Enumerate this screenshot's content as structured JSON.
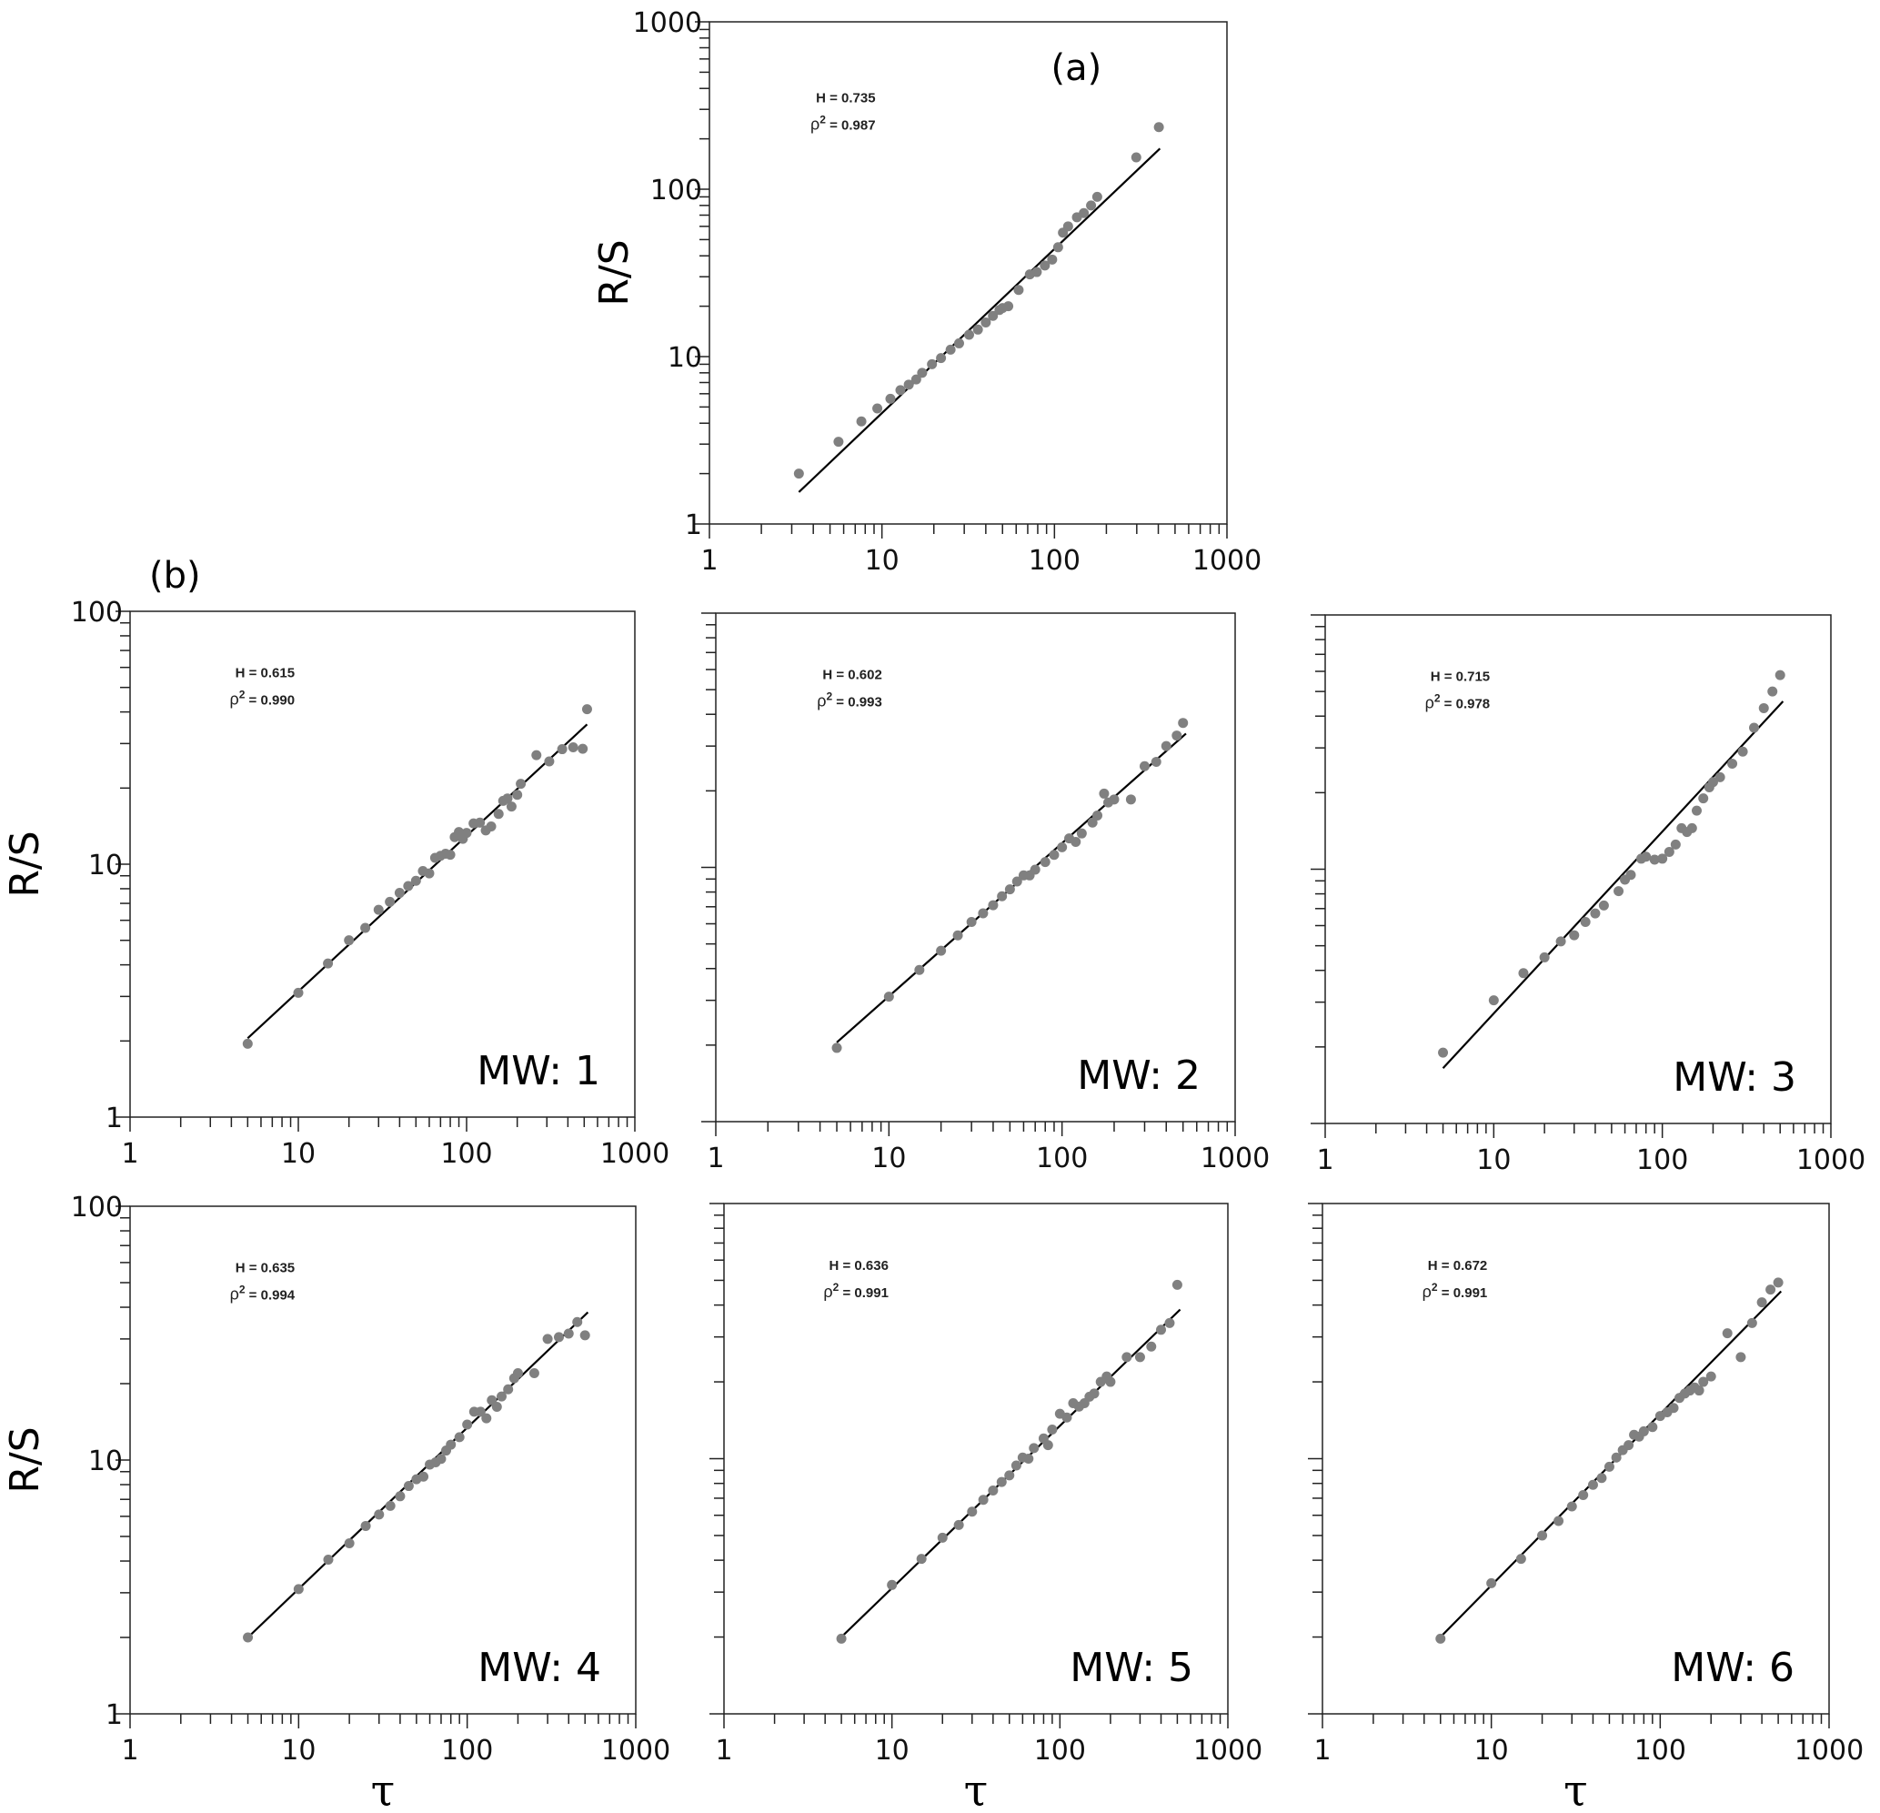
{
  "chart_data": [
    {
      "id": "a",
      "type": "scatter",
      "panel_label": "(a)",
      "xscale": "log",
      "yscale": "log",
      "xlim": [
        1,
        1000
      ],
      "ylim": [
        1,
        1000
      ],
      "xticks": [
        "1",
        "10",
        "100",
        "1000"
      ],
      "yticks": [
        "1",
        "10",
        "100",
        "1000"
      ],
      "ylabel": "R/S",
      "annotation_h": "H = 0.735",
      "annotation_r2": "0.987",
      "H": 0.735,
      "rho2": 0.987,
      "fit": [
        [
          3.3,
          1.55
        ],
        [
          409,
          175
        ]
      ],
      "points": [
        [
          3.3,
          2
        ],
        [
          5.6,
          3.1
        ],
        [
          7.6,
          4.1
        ],
        [
          9.4,
          4.9
        ],
        [
          11.2,
          5.6
        ],
        [
          12.8,
          6.3
        ],
        [
          14.3,
          6.8
        ],
        [
          15.8,
          7.3
        ],
        [
          17.1,
          8
        ],
        [
          19.5,
          9
        ],
        [
          22,
          9.8
        ],
        [
          25,
          11
        ],
        [
          28,
          12
        ],
        [
          32,
          13.5
        ],
        [
          36,
          14.5
        ],
        [
          40,
          16
        ],
        [
          44,
          17.5
        ],
        [
          48,
          19
        ],
        [
          50,
          19.5
        ],
        [
          54,
          20
        ],
        [
          62,
          25
        ],
        [
          72,
          31
        ],
        [
          79,
          32
        ],
        [
          88,
          35
        ],
        [
          97,
          38
        ],
        [
          105,
          45
        ],
        [
          112,
          55
        ],
        [
          120,
          60
        ],
        [
          135,
          68
        ],
        [
          148,
          72
        ],
        [
          163,
          80
        ],
        [
          177,
          90
        ],
        [
          298,
          155
        ],
        [
          403,
          235
        ]
      ]
    },
    {
      "id": "mw1",
      "type": "scatter",
      "panel_label": "(b)",
      "mw_label": "MW: 1",
      "xscale": "log",
      "yscale": "log",
      "xlim": [
        1,
        1000
      ],
      "ylim": [
        1,
        100
      ],
      "xticks": [
        "1",
        "10",
        "100",
        "1000"
      ],
      "yticks": [
        "1",
        "10",
        "100"
      ],
      "ylabel": "R/S",
      "annotation_h": "H = 0.615",
      "annotation_r2": "0.990",
      "H": 0.615,
      "rho2": 0.99,
      "fit": [
        [
          5,
          2.05
        ],
        [
          520,
          35.7
        ]
      ],
      "points": [
        [
          5,
          1.95
        ],
        [
          10,
          3.1
        ],
        [
          15,
          4.05
        ],
        [
          20,
          5
        ],
        [
          25,
          5.6
        ],
        [
          30,
          6.6
        ],
        [
          35,
          7.1
        ],
        [
          40,
          7.7
        ],
        [
          45,
          8.2
        ],
        [
          50,
          8.6
        ],
        [
          55,
          9.4
        ],
        [
          60,
          9.2
        ],
        [
          65,
          10.6
        ],
        [
          70,
          10.8
        ],
        [
          75,
          11
        ],
        [
          80,
          10.9
        ],
        [
          85,
          12.8
        ],
        [
          90,
          13.4
        ],
        [
          95,
          12.6
        ],
        [
          100,
          13.3
        ],
        [
          110,
          14.5
        ],
        [
          120,
          14.6
        ],
        [
          130,
          13.6
        ],
        [
          140,
          14.1
        ],
        [
          155,
          15.8
        ],
        [
          165,
          17.8
        ],
        [
          175,
          18.2
        ],
        [
          185,
          16.9
        ],
        [
          200,
          18.8
        ],
        [
          210,
          20.8
        ],
        [
          260,
          27
        ],
        [
          310,
          25.5
        ],
        [
          370,
          28.5
        ],
        [
          430,
          29
        ],
        [
          490,
          28.6
        ],
        [
          520,
          41
        ]
      ]
    },
    {
      "id": "mw2",
      "type": "scatter",
      "mw_label": "MW: 2",
      "xscale": "log",
      "yscale": "log",
      "xlim": [
        1,
        1000
      ],
      "ylim": [
        1,
        100
      ],
      "xticks": [
        "1",
        "10",
        "100",
        "1000"
      ],
      "annotation_h": "H = 0.602",
      "annotation_r2": "0.993",
      "H": 0.602,
      "rho2": 0.993,
      "fit": [
        [
          5,
          2.05
        ],
        [
          520,
          33.6
        ]
      ],
      "points": [
        [
          5,
          1.95
        ],
        [
          10,
          3.1
        ],
        [
          15,
          3.95
        ],
        [
          20,
          4.7
        ],
        [
          25,
          5.4
        ],
        [
          30,
          6.1
        ],
        [
          35,
          6.6
        ],
        [
          40,
          7.1
        ],
        [
          45,
          7.7
        ],
        [
          50,
          8.2
        ],
        [
          55,
          8.8
        ],
        [
          60,
          9.3
        ],
        [
          65,
          9.3
        ],
        [
          70,
          9.8
        ],
        [
          80,
          10.5
        ],
        [
          90,
          11.2
        ],
        [
          100,
          12
        ],
        [
          110,
          13
        ],
        [
          120,
          12.6
        ],
        [
          130,
          13.6
        ],
        [
          150,
          15
        ],
        [
          160,
          16
        ],
        [
          175,
          19.5
        ],
        [
          185,
          18
        ],
        [
          200,
          18.5
        ],
        [
          250,
          18.5
        ],
        [
          300,
          25
        ],
        [
          350,
          26
        ],
        [
          400,
          30
        ],
        [
          460,
          33
        ],
        [
          500,
          37
        ]
      ]
    },
    {
      "id": "mw3",
      "type": "scatter",
      "mw_label": "MW: 3",
      "xscale": "log",
      "yscale": "log",
      "xlim": [
        1,
        1000
      ],
      "ylim": [
        1,
        100
      ],
      "xticks": [
        "1",
        "10",
        "100",
        "1000"
      ],
      "annotation_h": "H = 0.715",
      "annotation_r2": "0.978",
      "H": 0.715,
      "rho2": 0.978,
      "fit": [
        [
          5,
          1.65
        ],
        [
          520,
          45.7
        ]
      ],
      "points": [
        [
          5,
          1.9
        ],
        [
          10,
          3.05
        ],
        [
          15,
          3.9
        ],
        [
          20,
          4.5
        ],
        [
          25,
          5.2
        ],
        [
          30,
          5.5
        ],
        [
          35,
          6.2
        ],
        [
          40,
          6.7
        ],
        [
          45,
          7.2
        ],
        [
          55,
          8.2
        ],
        [
          60,
          9.1
        ],
        [
          65,
          9.5
        ],
        [
          75,
          11
        ],
        [
          80,
          11.2
        ],
        [
          90,
          10.9
        ],
        [
          100,
          11
        ],
        [
          110,
          11.7
        ],
        [
          120,
          12.5
        ],
        [
          130,
          14.5
        ],
        [
          140,
          14
        ],
        [
          150,
          14.5
        ],
        [
          160,
          17
        ],
        [
          175,
          19
        ],
        [
          190,
          21
        ],
        [
          200,
          22
        ],
        [
          220,
          23
        ],
        [
          260,
          26
        ],
        [
          300,
          29
        ],
        [
          350,
          36
        ],
        [
          400,
          43
        ],
        [
          450,
          50
        ],
        [
          500,
          58
        ]
      ]
    },
    {
      "id": "mw4",
      "type": "scatter",
      "mw_label": "MW: 4",
      "xscale": "log",
      "yscale": "log",
      "xlim": [
        1,
        1000
      ],
      "ylim": [
        1,
        100
      ],
      "xticks": [
        "1",
        "10",
        "100",
        "1000"
      ],
      "yticks": [
        "1",
        "10",
        "100"
      ],
      "ylabel": "R/S",
      "xlabel": "τ",
      "annotation_h": "H = 0.635",
      "annotation_r2": "0.994",
      "H": 0.635,
      "rho2": 0.994,
      "fit": [
        [
          5,
          2
        ],
        [
          520,
          38.2
        ]
      ],
      "points": [
        [
          5,
          2
        ],
        [
          10,
          3.1
        ],
        [
          15,
          4.05
        ],
        [
          20,
          4.7
        ],
        [
          25,
          5.5
        ],
        [
          30,
          6.1
        ],
        [
          35,
          6.6
        ],
        [
          40,
          7.2
        ],
        [
          45,
          7.9
        ],
        [
          50,
          8.4
        ],
        [
          55,
          8.6
        ],
        [
          60,
          9.6
        ],
        [
          65,
          9.8
        ],
        [
          70,
          10.1
        ],
        [
          75,
          10.9
        ],
        [
          80,
          11.5
        ],
        [
          90,
          12.3
        ],
        [
          100,
          13.8
        ],
        [
          110,
          15.5
        ],
        [
          120,
          15.5
        ],
        [
          130,
          14.6
        ],
        [
          140,
          17.2
        ],
        [
          150,
          16.2
        ],
        [
          160,
          17.8
        ],
        [
          175,
          19
        ],
        [
          190,
          21
        ],
        [
          200,
          22
        ],
        [
          250,
          22
        ],
        [
          300,
          30
        ],
        [
          350,
          30.5
        ],
        [
          400,
          31.5
        ],
        [
          450,
          35
        ],
        [
          500,
          31
        ]
      ]
    },
    {
      "id": "mw5",
      "type": "scatter",
      "mw_label": "MW: 5",
      "xscale": "log",
      "yscale": "log",
      "xlim": [
        1,
        1000
      ],
      "ylim": [
        1,
        100
      ],
      "xticks": [
        "1",
        "10",
        "100",
        "1000"
      ],
      "xlabel": "τ",
      "annotation_h": "H = 0.636",
      "annotation_r2": "0.991",
      "H": 0.636,
      "rho2": 0.991,
      "fit": [
        [
          5,
          2
        ],
        [
          520,
          38.4
        ]
      ],
      "points": [
        [
          5,
          1.97
        ],
        [
          10,
          3.2
        ],
        [
          15,
          4.05
        ],
        [
          20,
          4.9
        ],
        [
          25,
          5.5
        ],
        [
          30,
          6.2
        ],
        [
          35,
          6.9
        ],
        [
          40,
          7.5
        ],
        [
          45,
          8.1
        ],
        [
          50,
          8.6
        ],
        [
          55,
          9.4
        ],
        [
          60,
          10.1
        ],
        [
          65,
          10
        ],
        [
          70,
          11
        ],
        [
          80,
          12
        ],
        [
          85,
          11.3
        ],
        [
          90,
          13
        ],
        [
          100,
          15
        ],
        [
          110,
          14.5
        ],
        [
          120,
          16.5
        ],
        [
          130,
          16
        ],
        [
          140,
          16.5
        ],
        [
          150,
          17.5
        ],
        [
          160,
          18
        ],
        [
          175,
          20
        ],
        [
          190,
          21
        ],
        [
          200,
          20
        ],
        [
          250,
          25
        ],
        [
          300,
          25
        ],
        [
          350,
          27.5
        ],
        [
          400,
          32
        ],
        [
          450,
          34
        ],
        [
          500,
          48
        ]
      ]
    },
    {
      "id": "mw6",
      "type": "scatter",
      "mw_label": "MW: 6",
      "xscale": "log",
      "yscale": "log",
      "xlim": [
        1,
        1000
      ],
      "ylim": [
        1,
        100
      ],
      "xticks": [
        "1",
        "10",
        "100",
        "1000"
      ],
      "xlabel": "τ",
      "annotation_h": "H = 0.672",
      "annotation_r2": "0.991",
      "H": 0.672,
      "rho2": 0.991,
      "fit": [
        [
          5,
          2
        ],
        [
          520,
          45.3
        ]
      ],
      "points": [
        [
          5,
          1.97
        ],
        [
          10,
          3.25
        ],
        [
          15,
          4.05
        ],
        [
          20,
          5
        ],
        [
          25,
          5.7
        ],
        [
          30,
          6.5
        ],
        [
          35,
          7.2
        ],
        [
          40,
          7.9
        ],
        [
          45,
          8.4
        ],
        [
          50,
          9.3
        ],
        [
          55,
          10.1
        ],
        [
          60,
          10.8
        ],
        [
          65,
          11.3
        ],
        [
          70,
          12.4
        ],
        [
          75,
          12.2
        ],
        [
          80,
          12.8
        ],
        [
          90,
          13.3
        ],
        [
          100,
          14.7
        ],
        [
          110,
          15.2
        ],
        [
          120,
          15.8
        ],
        [
          130,
          17.3
        ],
        [
          140,
          18
        ],
        [
          150,
          18.5
        ],
        [
          160,
          19
        ],
        [
          170,
          18.5
        ],
        [
          180,
          20
        ],
        [
          200,
          21
        ],
        [
          250,
          31
        ],
        [
          300,
          25
        ],
        [
          350,
          34
        ],
        [
          400,
          41
        ],
        [
          450,
          46
        ],
        [
          500,
          49
        ]
      ]
    }
  ],
  "colors": {
    "points": "#808080",
    "fit": "#000000",
    "axes": "#222222"
  }
}
